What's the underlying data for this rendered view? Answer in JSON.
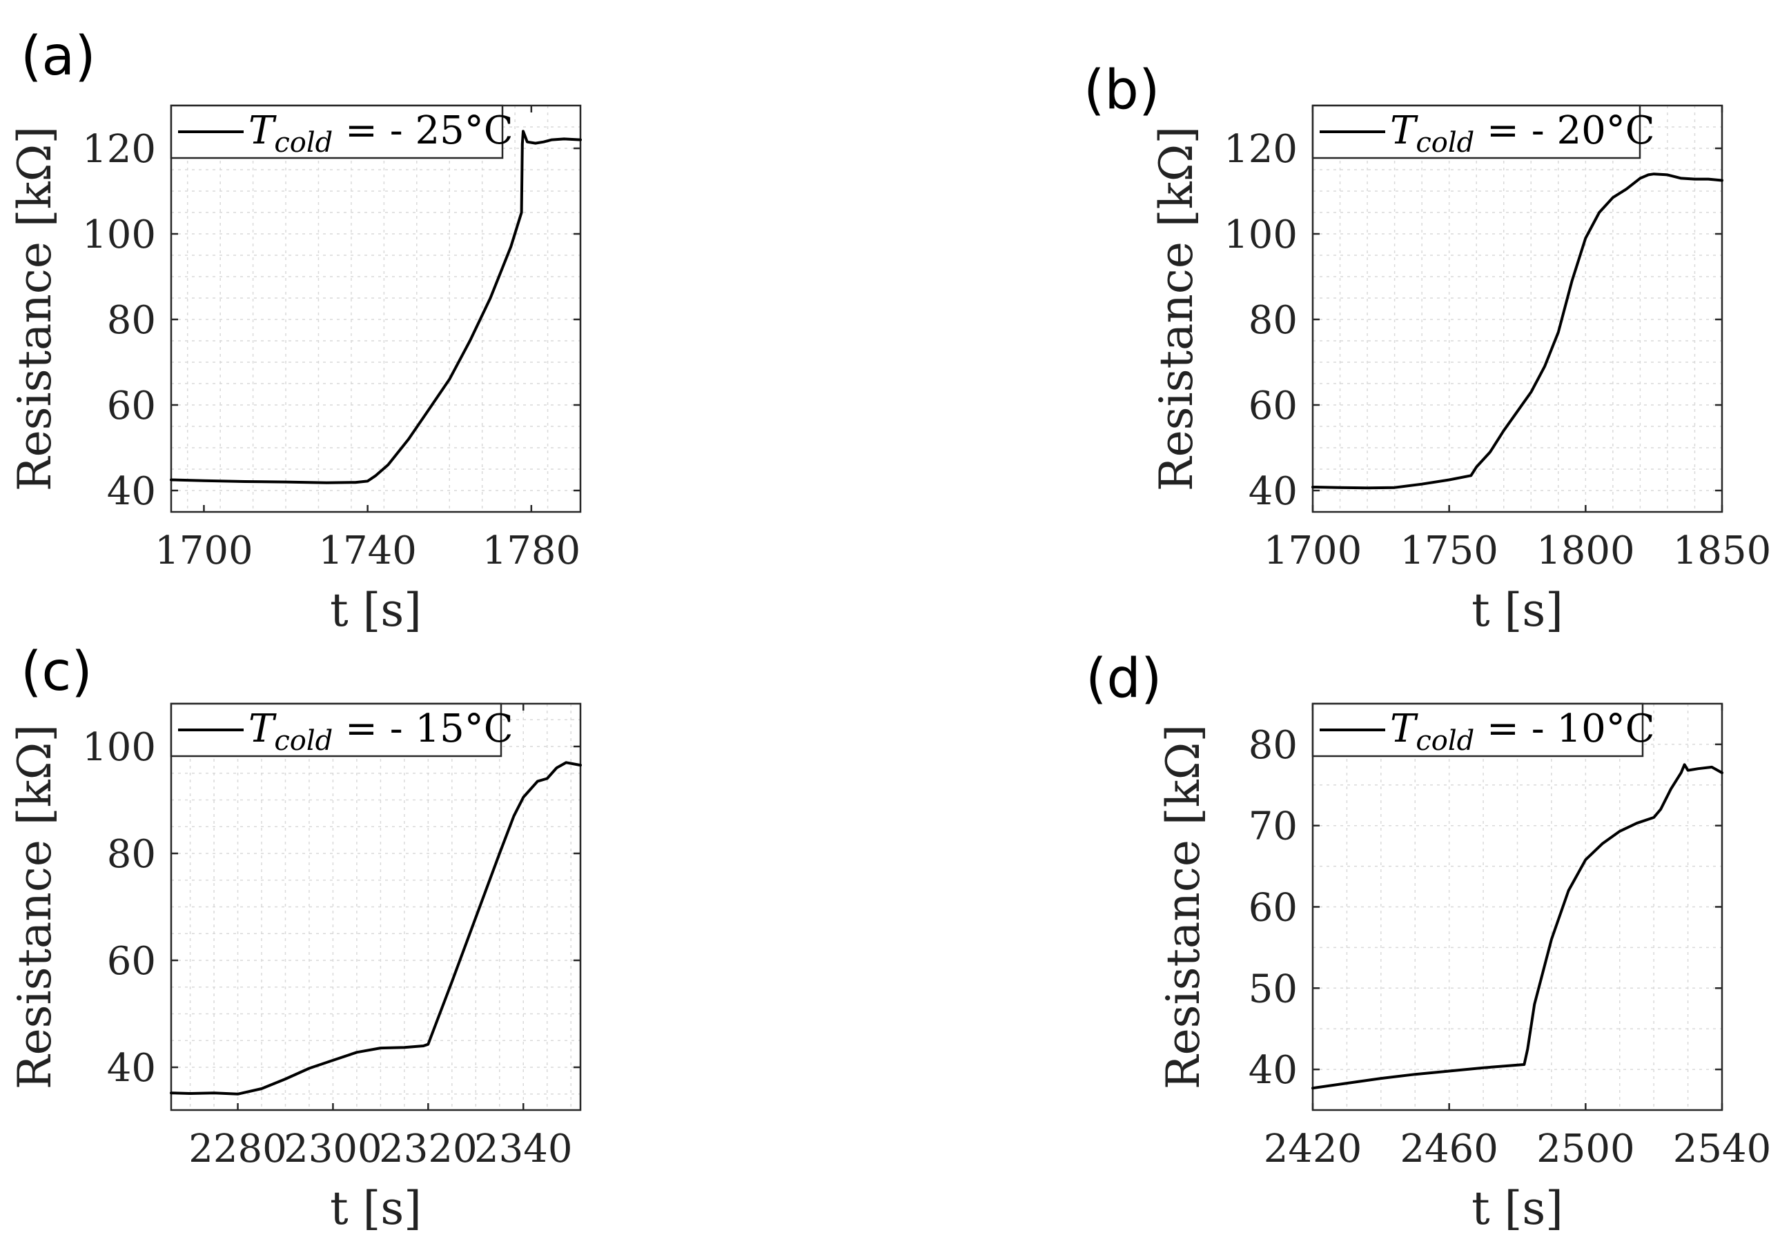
{
  "chart_data": [
    {
      "panel_label": "(a)",
      "type": "line",
      "xlabel": "t  [s]",
      "ylabel": "Resistance  [kΩ]",
      "xlim": [
        1692,
        1792
      ],
      "ylim": [
        35,
        130
      ],
      "xticks": [
        1700,
        1740,
        1780
      ],
      "yticks": [
        40,
        60,
        80,
        100,
        120
      ],
      "legend_position": "top-left",
      "series": [
        {
          "legend_symbol": "T",
          "legend_subscript": "cold",
          "legend_value": " = - 25°C",
          "x": [
            1692,
            1700,
            1710,
            1720,
            1730,
            1737,
            1740,
            1742,
            1745,
            1750,
            1755,
            1760,
            1765,
            1770,
            1775,
            1777.6,
            1777.8,
            1778,
            1779,
            1781,
            1783,
            1785,
            1788,
            1792
          ],
          "y": [
            42.5,
            42.3,
            42.1,
            42.0,
            41.8,
            41.9,
            42.2,
            43.5,
            46,
            52,
            59,
            66,
            75,
            85,
            97,
            105,
            121,
            124,
            121.5,
            121.2,
            121.5,
            122,
            122.2,
            122
          ]
        }
      ]
    },
    {
      "panel_label": "(b)",
      "type": "line",
      "xlabel": "t  [s]",
      "ylabel": "Resistance  [kΩ]",
      "xlim": [
        1700,
        1850
      ],
      "ylim": [
        35,
        130
      ],
      "xticks": [
        1700,
        1750,
        1800,
        1850
      ],
      "yticks": [
        40,
        60,
        80,
        100,
        120
      ],
      "legend_position": "top-left",
      "series": [
        {
          "legend_symbol": "T",
          "legend_subscript": "cold",
          "legend_value": " = - 20°C",
          "x": [
            1700,
            1710,
            1720,
            1730,
            1740,
            1750,
            1758,
            1760,
            1765,
            1770,
            1775,
            1780,
            1785,
            1790,
            1795,
            1800,
            1805,
            1810,
            1815,
            1820,
            1823,
            1825,
            1830,
            1835,
            1840,
            1845,
            1850
          ],
          "y": [
            40.8,
            40.7,
            40.6,
            40.7,
            41.5,
            42.5,
            43.5,
            45.5,
            49,
            54,
            58.5,
            63,
            69,
            77,
            89,
            99,
            105,
            108.5,
            110.5,
            113,
            113.8,
            114,
            113.8,
            113,
            112.8,
            112.8,
            112.5
          ]
        }
      ]
    },
    {
      "panel_label": "(c)",
      "type": "line",
      "xlabel": "t  [s]",
      "ylabel": "Resistance  [kΩ]",
      "xlim": [
        2266,
        2352
      ],
      "ylim": [
        32,
        108
      ],
      "xticks": [
        2280,
        2300,
        2320,
        2340
      ],
      "yticks": [
        40,
        60,
        80,
        100
      ],
      "legend_position": "top-left",
      "series": [
        {
          "legend_symbol": "T",
          "legend_subscript": "cold",
          "legend_value": " = - 15°C",
          "x": [
            2266,
            2270,
            2275,
            2280,
            2285,
            2290,
            2295,
            2300,
            2305,
            2310,
            2315,
            2319,
            2320,
            2322,
            2325,
            2330,
            2335,
            2338,
            2340,
            2343,
            2345,
            2347,
            2349,
            2352
          ],
          "y": [
            35.2,
            35.1,
            35.2,
            35.0,
            36,
            37.8,
            39.8,
            41.3,
            42.8,
            43.6,
            43.7,
            44,
            44.3,
            49,
            56,
            68,
            80,
            87,
            90.5,
            93.5,
            94,
            96,
            97,
            96.5
          ]
        }
      ]
    },
    {
      "panel_label": "(d)",
      "type": "line",
      "xlabel": "t  [s]",
      "ylabel": "Resistance  [kΩ]",
      "xlim": [
        2420,
        2540
      ],
      "ylim": [
        35,
        85
      ],
      "xticks": [
        2420,
        2460,
        2500,
        2540
      ],
      "yticks": [
        40,
        50,
        60,
        70,
        80
      ],
      "legend_position": "top-left",
      "series": [
        {
          "legend_symbol": "T",
          "legend_subscript": "cold",
          "legend_value": " = - 10°C",
          "x": [
            2420,
            2430,
            2440,
            2450,
            2460,
            2470,
            2482,
            2483,
            2485,
            2490,
            2495,
            2500,
            2505,
            2510,
            2515,
            2520,
            2522,
            2525,
            2528,
            2529,
            2530,
            2533,
            2537,
            2540
          ],
          "y": [
            37.7,
            38.3,
            38.9,
            39.4,
            39.8,
            40.2,
            40.6,
            42.5,
            48,
            56,
            62,
            65.8,
            67.8,
            69.3,
            70.3,
            71,
            72,
            74.5,
            76.5,
            77.5,
            76.8,
            77,
            77.2,
            76.5
          ]
        }
      ]
    }
  ]
}
